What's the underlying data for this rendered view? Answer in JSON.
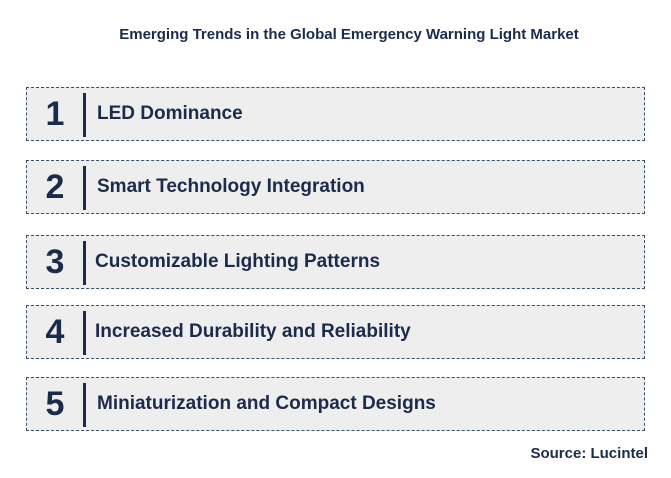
{
  "title": "Emerging Trends in the Global Emergency Warning Light Market",
  "trends": [
    {
      "number": "1",
      "label": "LED Dominance"
    },
    {
      "number": "2",
      "label": "Smart Technology Integration"
    },
    {
      "number": "3",
      "label": "Customizable Lighting Patterns"
    },
    {
      "number": "4",
      "label": "Increased Durability and Reliability"
    },
    {
      "number": "5",
      "label": "Miniaturization and Compact Designs"
    }
  ],
  "source": "Source: Lucintel"
}
